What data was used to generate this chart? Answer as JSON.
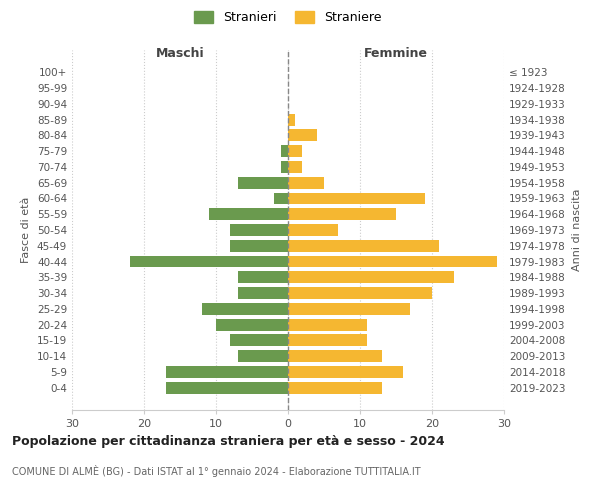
{
  "age_groups": [
    "100+",
    "95-99",
    "90-94",
    "85-89",
    "80-84",
    "75-79",
    "70-74",
    "65-69",
    "60-64",
    "55-59",
    "50-54",
    "45-49",
    "40-44",
    "35-39",
    "30-34",
    "25-29",
    "20-24",
    "15-19",
    "10-14",
    "5-9",
    "0-4"
  ],
  "birth_years": [
    "≤ 1923",
    "1924-1928",
    "1929-1933",
    "1934-1938",
    "1939-1943",
    "1944-1948",
    "1949-1953",
    "1954-1958",
    "1959-1963",
    "1964-1968",
    "1969-1973",
    "1974-1978",
    "1979-1983",
    "1984-1988",
    "1989-1993",
    "1994-1998",
    "1999-2003",
    "2004-2008",
    "2009-2013",
    "2014-2018",
    "2019-2023"
  ],
  "males": [
    0,
    0,
    0,
    0,
    0,
    1,
    1,
    7,
    2,
    11,
    8,
    8,
    22,
    7,
    7,
    12,
    10,
    8,
    7,
    17,
    17
  ],
  "females": [
    0,
    0,
    0,
    1,
    4,
    2,
    2,
    5,
    19,
    15,
    7,
    21,
    29,
    23,
    20,
    17,
    11,
    11,
    13,
    16,
    13
  ],
  "male_color": "#6a9a4e",
  "female_color": "#f5b731",
  "title": "Popolazione per cittadinanza straniera per età e sesso - 2024",
  "subtitle": "COMUNE DI ALMÈ (BG) - Dati ISTAT al 1° gennaio 2024 - Elaborazione TUTTITALIA.IT",
  "xlabel_left": "Maschi",
  "xlabel_right": "Femmine",
  "ylabel_left": "Fasce di età",
  "ylabel_right": "Anni di nascita",
  "legend_male": "Stranieri",
  "legend_female": "Straniere",
  "xlim": 30,
  "background_color": "#ffffff",
  "grid_color": "#cccccc"
}
